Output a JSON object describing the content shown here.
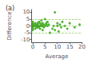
{
  "chart_data": {
    "type": "scatter",
    "title": "(a)",
    "xlabel": "Average",
    "ylabel": "Difference",
    "x": [
      0.0,
      0.0,
      0.0,
      0.0,
      0.0,
      0.0,
      0.0,
      0.0,
      0.0,
      0.5,
      0.5,
      1.0,
      1.0,
      1.0,
      1.5,
      1.5,
      1.5,
      2.0,
      2.0,
      2.0,
      2.0,
      2.5,
      2.5,
      2.5,
      3.0,
      3.0,
      3.0,
      3.5,
      3.5,
      3.5,
      4.0,
      4.0,
      4.0,
      4.5,
      4.5,
      5.0,
      5.0,
      5.5,
      5.5,
      6.0,
      6.0,
      6.5,
      7.0,
      8.0,
      8.5,
      9.0,
      9.0,
      10.0,
      10.0,
      10.5,
      11.0,
      11.5,
      12.0,
      13.0,
      14.0,
      15.0,
      17.0,
      19.0
    ],
    "values": [
      0.0,
      1.0,
      -1.0,
      2.0,
      -2.0,
      3.0,
      -3.0,
      0.5,
      -0.5,
      0.0,
      1.0,
      0.0,
      2.0,
      -2.0,
      1.0,
      0.0,
      -1.0,
      0.0,
      2.0,
      -1.0,
      1.0,
      3.0,
      -1.0,
      0.0,
      2.0,
      0.0,
      -2.0,
      1.0,
      4.0,
      0.0,
      0.0,
      2.0,
      -3.0,
      1.0,
      -1.0,
      5.0,
      0.0,
      2.0,
      1.0,
      0.0,
      3.0,
      1.0,
      -5.0,
      -2.0,
      0.0,
      10.0,
      -3.0,
      2.0,
      0.0,
      -4.0,
      1.0,
      -1.0,
      3.0,
      0.0,
      -2.0,
      2.0,
      -1.0,
      1.0
    ],
    "color": "#44aa22",
    "marker": "circle",
    "xlim": [
      -0.5,
      20
    ],
    "ylim": [
      -12,
      12
    ],
    "xticks": [
      0,
      5,
      10,
      15,
      20
    ],
    "yticks": [
      -10,
      -5,
      0,
      5,
      10
    ],
    "grid": false,
    "hlines": {
      "values": [
        5,
        -5,
        0
      ],
      "color": "#88cc55",
      "line_style": "dashed"
    }
  }
}
